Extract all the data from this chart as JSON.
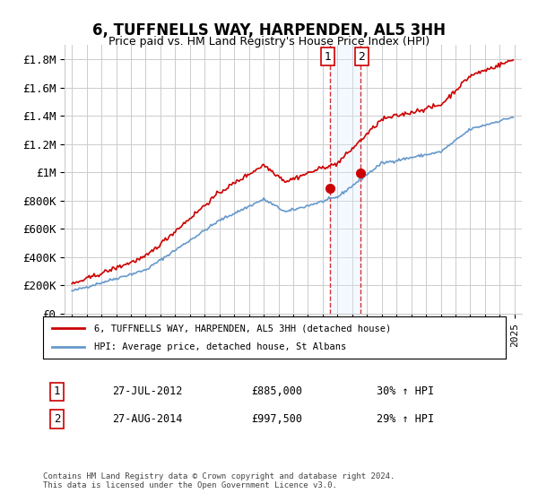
{
  "title": "6, TUFFNELLS WAY, HARPENDEN, AL5 3HH",
  "subtitle": "Price paid vs. HM Land Registry's House Price Index (HPI)",
  "ylabel_ticks": [
    "£0",
    "£200K",
    "£400K",
    "£600K",
    "£800K",
    "£1M",
    "£1.2M",
    "£1.4M",
    "£1.6M",
    "£1.8M"
  ],
  "ytick_values": [
    0,
    200000,
    400000,
    600000,
    800000,
    1000000,
    1200000,
    1400000,
    1600000,
    1800000
  ],
  "ylim": [
    0,
    1900000
  ],
  "legend_line1": "6, TUFFNELLS WAY, HARPENDEN, AL5 3HH (detached house)",
  "legend_line2": "HPI: Average price, detached house, St Albans",
  "sale1_label": "1",
  "sale1_date": "27-JUL-2012",
  "sale1_price": "£885,000",
  "sale1_pct": "30% ↑ HPI",
  "sale2_label": "2",
  "sale2_date": "27-AUG-2014",
  "sale2_price": "£997,500",
  "sale2_pct": "29% ↑ HPI",
  "footnote": "Contains HM Land Registry data © Crown copyright and database right 2024.\nThis data is licensed under the Open Government Licence v3.0.",
  "hpi_color": "#6699cc",
  "sale_color": "#cc0000",
  "marker_color": "#cc0000",
  "shade_color": "#ddeeff",
  "vline_color": "#cc0000",
  "background_color": "#ffffff",
  "grid_color": "#cccccc"
}
